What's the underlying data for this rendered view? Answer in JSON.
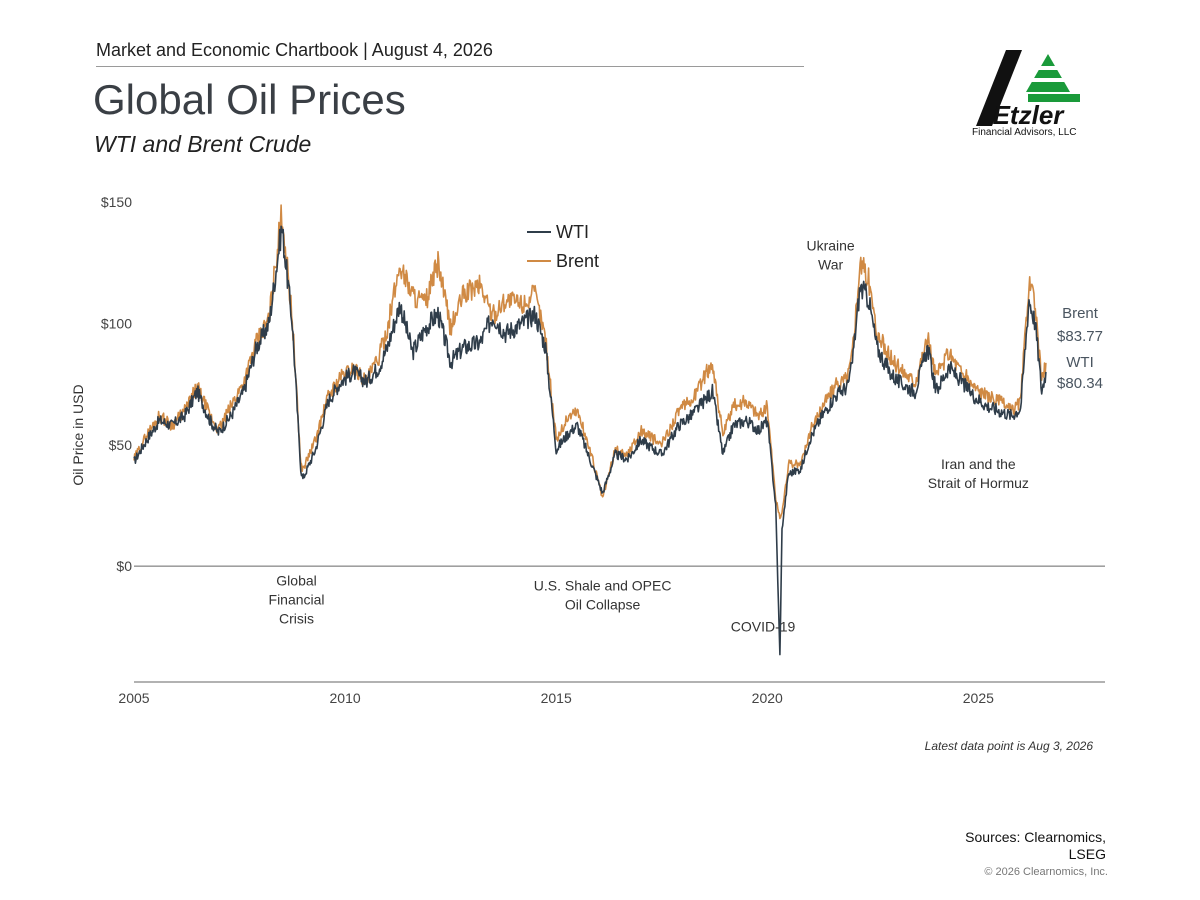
{
  "header": {
    "line": "Market and Economic Chartbook | August 4, 2026",
    "title": "Global Oil Prices",
    "subtitle": "WTI and Brent Crude"
  },
  "logo": {
    "name": "Etzler",
    "caption": "Financial Advisors, LLC",
    "colors": {
      "mark": "#111111",
      "accent": "#1a9a3a"
    }
  },
  "footer": {
    "latest": "Latest data point is Aug 3, 2026",
    "sources": "Sources: Clearnomics, LSEG",
    "copyright": "© 2026 Clearnomics, Inc."
  },
  "chart_data": {
    "type": "line",
    "ylabel": "Oil Price in USD",
    "xlim": [
      2005,
      2028
    ],
    "ylim": [
      -37,
      150
    ],
    "y_ticks": [
      {
        "value": 150,
        "label": "$150"
      },
      {
        "value": 100,
        "label": "$100"
      },
      {
        "value": 50,
        "label": "$50"
      },
      {
        "value": 0,
        "label": "$0"
      }
    ],
    "x_ticks": [
      {
        "value": 2005,
        "label": "2005"
      },
      {
        "value": 2010,
        "label": "2010"
      },
      {
        "value": 2015,
        "label": "2015"
      },
      {
        "value": 2020,
        "label": "2020"
      },
      {
        "value": 2025,
        "label": "2025"
      }
    ],
    "grid": false,
    "legend": {
      "position": "top-center",
      "entries": [
        "WTI",
        "Brent"
      ]
    },
    "series": [
      {
        "name": "WTI",
        "color": "#2f3d4a",
        "points": [
          [
            2005.0,
            43
          ],
          [
            2005.3,
            52
          ],
          [
            2005.6,
            60
          ],
          [
            2005.9,
            58
          ],
          [
            2006.2,
            62
          ],
          [
            2006.5,
            72
          ],
          [
            2006.8,
            60
          ],
          [
            2007.0,
            55
          ],
          [
            2007.3,
            62
          ],
          [
            2007.6,
            72
          ],
          [
            2007.9,
            90
          ],
          [
            2008.2,
            100
          ],
          [
            2008.5,
            140
          ],
          [
            2008.75,
            100
          ],
          [
            2008.95,
            40
          ],
          [
            2009.0,
            36
          ],
          [
            2009.3,
            48
          ],
          [
            2009.6,
            68
          ],
          [
            2009.9,
            76
          ],
          [
            2010.2,
            80
          ],
          [
            2010.5,
            76
          ],
          [
            2010.8,
            82
          ],
          [
            2011.0,
            90
          ],
          [
            2011.3,
            108
          ],
          [
            2011.6,
            88
          ],
          [
            2011.9,
            98
          ],
          [
            2012.2,
            104
          ],
          [
            2012.5,
            84
          ],
          [
            2012.8,
            90
          ],
          [
            2013.2,
            92
          ],
          [
            2013.5,
            103
          ],
          [
            2013.8,
            96
          ],
          [
            2014.2,
            100
          ],
          [
            2014.5,
            104
          ],
          [
            2014.75,
            90
          ],
          [
            2015.0,
            48
          ],
          [
            2015.3,
            55
          ],
          [
            2015.5,
            58
          ],
          [
            2015.8,
            44
          ],
          [
            2016.1,
            30
          ],
          [
            2016.4,
            46
          ],
          [
            2016.7,
            44
          ],
          [
            2017.0,
            52
          ],
          [
            2017.5,
            46
          ],
          [
            2017.9,
            58
          ],
          [
            2018.2,
            62
          ],
          [
            2018.7,
            72
          ],
          [
            2018.95,
            46
          ],
          [
            2019.2,
            58
          ],
          [
            2019.5,
            60
          ],
          [
            2019.8,
            56
          ],
          [
            2020.0,
            60
          ],
          [
            2020.2,
            25
          ],
          [
            2020.3,
            -37
          ],
          [
            2020.35,
            15
          ],
          [
            2020.5,
            38
          ],
          [
            2020.8,
            40
          ],
          [
            2021.0,
            52
          ],
          [
            2021.3,
            62
          ],
          [
            2021.6,
            70
          ],
          [
            2021.9,
            74
          ],
          [
            2022.0,
            82
          ],
          [
            2022.2,
            115
          ],
          [
            2022.4,
            110
          ],
          [
            2022.6,
            90
          ],
          [
            2022.9,
            80
          ],
          [
            2023.1,
            76
          ],
          [
            2023.5,
            72
          ],
          [
            2023.8,
            90
          ],
          [
            2024.0,
            72
          ],
          [
            2024.3,
            82
          ],
          [
            2024.6,
            76
          ],
          [
            2024.9,
            70
          ],
          [
            2025.2,
            66
          ],
          [
            2025.5,
            64
          ],
          [
            2025.8,
            62
          ],
          [
            2026.0,
            65
          ],
          [
            2026.2,
            110
          ],
          [
            2026.35,
            100
          ],
          [
            2026.5,
            72
          ],
          [
            2026.6,
            80
          ]
        ],
        "end_label": "WTI",
        "end_value": "$80.34"
      },
      {
        "name": "Brent",
        "color": "#d08a44",
        "points": [
          [
            2005.0,
            44
          ],
          [
            2005.3,
            54
          ],
          [
            2005.6,
            62
          ],
          [
            2005.9,
            58
          ],
          [
            2006.2,
            64
          ],
          [
            2006.5,
            74
          ],
          [
            2006.8,
            62
          ],
          [
            2007.0,
            56
          ],
          [
            2007.3,
            66
          ],
          [
            2007.6,
            76
          ],
          [
            2007.9,
            92
          ],
          [
            2008.2,
            102
          ],
          [
            2008.5,
            146
          ],
          [
            2008.75,
            102
          ],
          [
            2008.95,
            42
          ],
          [
            2009.0,
            40
          ],
          [
            2009.3,
            52
          ],
          [
            2009.6,
            70
          ],
          [
            2009.9,
            78
          ],
          [
            2010.2,
            82
          ],
          [
            2010.5,
            76
          ],
          [
            2010.8,
            86
          ],
          [
            2011.0,
            98
          ],
          [
            2011.3,
            124
          ],
          [
            2011.6,
            112
          ],
          [
            2011.9,
            108
          ],
          [
            2012.2,
            125
          ],
          [
            2012.5,
            98
          ],
          [
            2012.8,
            112
          ],
          [
            2013.2,
            116
          ],
          [
            2013.5,
            103
          ],
          [
            2013.8,
            110
          ],
          [
            2014.2,
            108
          ],
          [
            2014.5,
            112
          ],
          [
            2014.75,
            94
          ],
          [
            2015.0,
            52
          ],
          [
            2015.3,
            62
          ],
          [
            2015.5,
            64
          ],
          [
            2015.8,
            48
          ],
          [
            2016.1,
            28
          ],
          [
            2016.4,
            48
          ],
          [
            2016.7,
            46
          ],
          [
            2017.0,
            56
          ],
          [
            2017.5,
            50
          ],
          [
            2017.9,
            64
          ],
          [
            2018.2,
            68
          ],
          [
            2018.7,
            84
          ],
          [
            2018.95,
            54
          ],
          [
            2019.2,
            66
          ],
          [
            2019.5,
            68
          ],
          [
            2019.8,
            62
          ],
          [
            2020.0,
            66
          ],
          [
            2020.2,
            28
          ],
          [
            2020.3,
            20
          ],
          [
            2020.35,
            22
          ],
          [
            2020.5,
            42
          ],
          [
            2020.8,
            42
          ],
          [
            2021.0,
            55
          ],
          [
            2021.3,
            66
          ],
          [
            2021.6,
            74
          ],
          [
            2021.9,
            78
          ],
          [
            2022.0,
            86
          ],
          [
            2022.2,
            125
          ],
          [
            2022.4,
            118
          ],
          [
            2022.6,
            96
          ],
          [
            2022.9,
            86
          ],
          [
            2023.1,
            82
          ],
          [
            2023.5,
            76
          ],
          [
            2023.8,
            94
          ],
          [
            2024.0,
            78
          ],
          [
            2024.3,
            88
          ],
          [
            2024.6,
            80
          ],
          [
            2024.9,
            74
          ],
          [
            2025.2,
            70
          ],
          [
            2025.5,
            68
          ],
          [
            2025.8,
            64
          ],
          [
            2026.0,
            68
          ],
          [
            2026.2,
            118
          ],
          [
            2026.35,
            106
          ],
          [
            2026.5,
            76
          ],
          [
            2026.6,
            83.77
          ]
        ],
        "end_label": "Brent",
        "end_value": "$83.77"
      }
    ],
    "annotations": [
      {
        "text": [
          "Global",
          "Financial",
          "Crisis"
        ],
        "x": 2008.85,
        "y": -8
      },
      {
        "text": [
          "U.S. Shale and OPEC",
          "Oil Collapse"
        ],
        "x": 2016.1,
        "y": -10
      },
      {
        "text": [
          "Ukraine",
          "War"
        ],
        "x": 2021.5,
        "y": 130
      },
      {
        "text": [
          "COVID-19"
        ],
        "x": 2019.9,
        "y": -27
      },
      {
        "text": [
          "Iran and the",
          "Strait of Hormuz"
        ],
        "x": 2025.0,
        "y": 40
      }
    ]
  }
}
